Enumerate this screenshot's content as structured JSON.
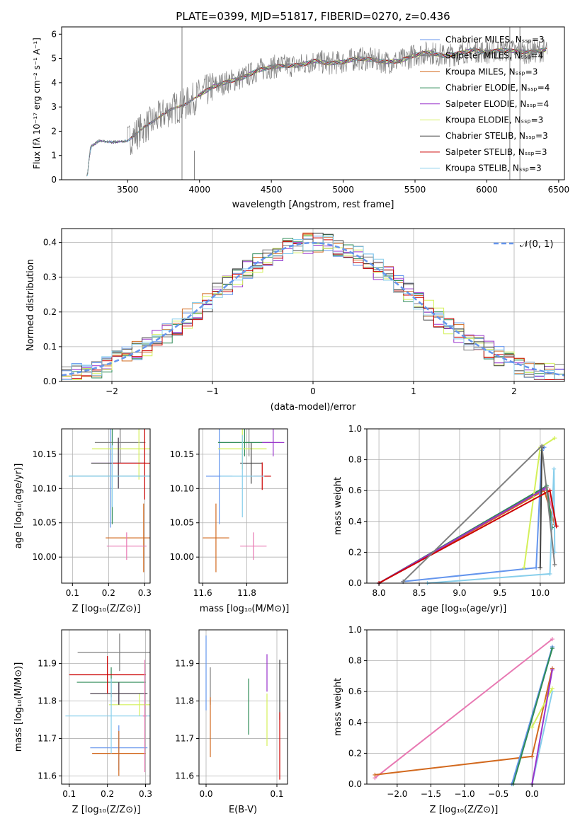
{
  "figure_title": "PLATE=0399, MJD=51817, FIBERID=0270, z=0.436",
  "colors": {
    "series": [
      "#6495ed",
      "#7f7f7f",
      "#d2691e",
      "#2e8b57",
      "#9932cc",
      "#d4f05a",
      "#404040",
      "#cc0000",
      "#87ceeb"
    ],
    "extra": [
      "#e879b3",
      "#d08850",
      "#b07fb0"
    ],
    "gauss": "#6495ed"
  },
  "chart_data": [
    {
      "id": "spectrum",
      "type": "line",
      "title": "PLATE=0399, MJD=51817, FIBERID=0270, z=0.436",
      "xlabel": "wavelength [Angstrom, rest frame]",
      "ylabel": "Flux [fλ 10⁻¹⁷ erg cm⁻² s⁻¹ A⁻¹]",
      "xlim": [
        3040,
        6540
      ],
      "ylim": [
        0,
        6.3
      ],
      "xticks": [
        "3500",
        "4000",
        "4500",
        "5000",
        "5500",
        "6000",
        "6500"
      ],
      "yticks": [
        "0",
        "1",
        "2",
        "3",
        "4",
        "5",
        "6"
      ],
      "legend_position": "upper-right",
      "legend": [
        "Chabrier MILES, Nₛₛₚ=3",
        "Salpeter MILES, Nₛₛₚ=4",
        "Kroupa MILES, Nₛₛₚ=3",
        "Chabrier ELODIE, Nₛₛₚ=4",
        "Salpeter ELODIE, Nₛₛₚ=4",
        "Kroupa ELODIE, Nₛₛₚ=3",
        "Chabrier STELIB, Nₛₛₚ=3",
        "Salpeter STELIB, Nₛₛₚ=3",
        "Kroupa STELIB, Nₛₛₚ=3"
      ],
      "continuum": {
        "x": [
          3220,
          3240,
          3300,
          3400,
          3500,
          3600,
          3700,
          3800,
          3900,
          4000,
          4100,
          4200,
          4300,
          4400,
          4500,
          4600,
          4700,
          4800,
          4900,
          5000,
          5100,
          5200,
          5300,
          5400,
          5500,
          5600,
          5700,
          5800,
          5900,
          6000,
          6100,
          6200,
          6300,
          6400
        ],
        "y": [
          0.2,
          1.35,
          1.6,
          1.55,
          1.6,
          2.1,
          2.5,
          2.9,
          3.1,
          3.5,
          3.85,
          4.05,
          4.2,
          4.5,
          4.65,
          4.7,
          4.72,
          4.9,
          4.8,
          4.85,
          5.0,
          4.95,
          4.85,
          4.9,
          5.15,
          5.25,
          5.1,
          5.2,
          5.35,
          5.25,
          5.35,
          5.3,
          5.25,
          5.35
        ]
      }
    },
    {
      "id": "residuals",
      "type": "histogram",
      "xlabel": "(data-model)/error",
      "ylabel": "Normed distribution",
      "xlim": [
        -2.5,
        2.5
      ],
      "ylim": [
        0,
        0.44
      ],
      "xticks": [
        "−2",
        "−1",
        "0",
        "1",
        "2"
      ],
      "yticks": [
        "0.0",
        "0.1",
        "0.2",
        "0.3",
        "0.4"
      ],
      "gaussian_label": "𝒩(0, 1)",
      "legend_position": "upper-right",
      "bin_width": 0.1
    },
    {
      "id": "age-vs-Z",
      "type": "errorbar",
      "xlabel": "Z [log₁₀(Z/Z⊙)]",
      "ylabel": "age  [log₁₀(age/yr)]",
      "xlim": [
        0.07,
        0.315
      ],
      "ylim": [
        9.962,
        10.187
      ],
      "xticks": [
        "0.1",
        "0.2",
        "0.3"
      ],
      "yticks": [
        "10.00",
        "10.05",
        "10.10",
        "10.15"
      ],
      "points": [
        {
          "x": 0.205,
          "y": 10.118,
          "xerr": 0.115,
          "yerr": 0.075
        },
        {
          "x": 0.232,
          "y": 10.167,
          "xerr": 0.07,
          "yerr": 0.03
        },
        {
          "x": 0.297,
          "y": 10.028,
          "xerr": 0.105,
          "yerr": 0.05
        },
        {
          "x": 0.21,
          "y": 10.118,
          "xerr": 0.12,
          "yerr": 0.07
        },
        {
          "x": 0.227,
          "y": 10.137,
          "xerr": 0.075,
          "yerr": 0.037
        },
        {
          "x": 0.284,
          "y": 10.158,
          "xerr": 0.13,
          "yerr": 0.045
        },
        {
          "x": 0.227,
          "y": 10.137,
          "xerr": 0.075,
          "yerr": 0.037
        },
        {
          "x": 0.3,
          "y": 10.137,
          "xerr": 0.09,
          "yerr": 0.053
        },
        {
          "x": 0.21,
          "y": 10.118,
          "xerr": 0.12,
          "yerr": 0.045
        },
        {
          "x": 0.25,
          "y": 10.016,
          "xerr": 0.055,
          "yerr": 0.02
        }
      ]
    },
    {
      "id": "age-vs-mass",
      "type": "errorbar",
      "xlabel": "mass [log₁₀(M/M⊙)]",
      "ylabel": "",
      "xlim": [
        11.583,
        11.985
      ],
      "ylim": [
        9.962,
        10.187
      ],
      "xticks": [
        "11.6",
        "11.8"
      ],
      "yticks": [
        "10.00",
        "10.05",
        "10.10",
        "10.15"
      ],
      "points": [
        {
          "x": 11.675,
          "y": 10.118,
          "xerr": 0.06,
          "yerr": 0.07
        },
        {
          "x": 11.81,
          "y": 10.167,
          "xerr": 0.14,
          "yerr": 0.02
        },
        {
          "x": 11.66,
          "y": 10.028,
          "xerr": 0.06,
          "yerr": 0.05
        },
        {
          "x": 11.79,
          "y": 10.167,
          "xerr": 0.12,
          "yerr": 0.02
        },
        {
          "x": 11.92,
          "y": 10.167,
          "xerr": 0.05,
          "yerr": 0.02
        },
        {
          "x": 11.78,
          "y": 10.158,
          "xerr": 0.11,
          "yerr": 0.03
        },
        {
          "x": 11.82,
          "y": 10.137,
          "xerr": 0.05,
          "yerr": 0.03
        },
        {
          "x": 11.87,
          "y": 10.118,
          "xerr": 0.04,
          "yerr": 0.02
        },
        {
          "x": 11.78,
          "y": 10.118,
          "xerr": 0.1,
          "yerr": 0.06
        },
        {
          "x": 11.83,
          "y": 10.016,
          "xerr": 0.06,
          "yerr": 0.02
        }
      ]
    },
    {
      "id": "weight-vs-age",
      "type": "line",
      "xlabel": "age  [log₁₀(age/yr)]",
      "ylabel": "mass weight",
      "xlim": [
        7.85,
        10.3
      ],
      "ylim": [
        0,
        1
      ],
      "xticks": [
        "8.0",
        "8.5",
        "9.0",
        "9.5",
        "10.0"
      ],
      "yticks": [
        "0.0",
        "0.2",
        "0.4",
        "0.6",
        "0.8",
        "1.0"
      ],
      "series": [
        {
          "x": [
            8.0,
            10.08,
            10.2
          ],
          "y": [
            0.0,
            0.62,
            0.37
          ]
        },
        {
          "x": [
            8.0,
            10.05,
            10.18
          ],
          "y": [
            0.0,
            0.6,
            0.38
          ]
        },
        {
          "x": [
            8.3,
            9.95,
            10.02,
            10.05
          ],
          "y": [
            0.01,
            0.1,
            0.86,
            0.88
          ]
        },
        {
          "x": [
            8.0,
            10.08,
            10.15
          ],
          "y": [
            0.0,
            0.63,
            0.36
          ]
        },
        {
          "x": [
            8.6,
            10.12,
            10.17,
            10.18
          ],
          "y": [
            0.0,
            0.06,
            0.74,
            0.2
          ]
        },
        {
          "x": [
            9.8,
            10.0,
            10.18
          ],
          "y": [
            0.1,
            0.88,
            0.94
          ]
        },
        {
          "x": [
            8.0,
            10.05
          ],
          "y": [
            0.0,
            0.61
          ]
        },
        {
          "x": [
            10.0,
            10.02
          ],
          "y": [
            0.1,
            0.88
          ]
        },
        {
          "x": [
            8.0,
            10.12,
            10.2
          ],
          "y": [
            0.0,
            0.6,
            0.37
          ]
        },
        {
          "x": [
            8.3,
            10.02,
            10.18
          ],
          "y": [
            0.01,
            0.89,
            0.12
          ]
        }
      ]
    },
    {
      "id": "mass-vs-Z",
      "type": "errorbar",
      "xlabel": "Z [log₁₀(Z/Z⊙)]",
      "ylabel": "mass [log₁₀(M/M⊙)]",
      "xlim": [
        0.08,
        0.312
      ],
      "ylim": [
        11.578,
        11.99
      ],
      "xticks": [
        "0.1",
        "0.2",
        "0.3"
      ],
      "yticks": [
        "11.6",
        "11.7",
        "11.8",
        "11.9"
      ],
      "points": [
        {
          "x": 0.23,
          "y": 11.675,
          "xerr": 0.075,
          "yerr": 0.06
        },
        {
          "x": 0.232,
          "y": 11.93,
          "xerr": 0.11,
          "yerr": 0.05
        },
        {
          "x": 0.23,
          "y": 11.66,
          "xerr": 0.07,
          "yerr": 0.06
        },
        {
          "x": 0.21,
          "y": 11.85,
          "xerr": 0.09,
          "yerr": 0.04
        },
        {
          "x": 0.23,
          "y": 11.82,
          "xerr": 0.075,
          "yerr": 0.03
        },
        {
          "x": 0.284,
          "y": 11.79,
          "xerr": 0.08,
          "yerr": 0.03
        },
        {
          "x": 0.23,
          "y": 11.82,
          "xerr": 0.075,
          "yerr": 0.03
        },
        {
          "x": 0.2,
          "y": 11.87,
          "xerr": 0.1,
          "yerr": 0.05
        },
        {
          "x": 0.21,
          "y": 11.76,
          "xerr": 0.12,
          "yerr": 0.1
        },
        {
          "x": 0.298,
          "y": 11.76,
          "xerr": 0.005,
          "yerr": 0.15
        }
      ]
    },
    {
      "id": "mass-vs-ebv",
      "type": "errorbar",
      "xlabel": "E(B-V)",
      "ylabel": "",
      "xlim": [
        -0.01,
        0.115
      ],
      "ylim": [
        11.578,
        11.99
      ],
      "xticks": [
        "0.0",
        "0.1"
      ],
      "yticks": [
        "11.6",
        "11.7",
        "11.8",
        "11.9"
      ],
      "points": [
        {
          "x": 0.0,
          "y": 11.875,
          "xerr": 0,
          "yerr": 0.1
        },
        {
          "x": 0.006,
          "y": 11.84,
          "xerr": 0,
          "yerr": 0.05
        },
        {
          "x": 0.006,
          "y": 11.73,
          "xerr": 0,
          "yerr": 0.08
        },
        {
          "x": 0.06,
          "y": 11.785,
          "xerr": 0,
          "yerr": 0.075
        },
        {
          "x": 0.086,
          "y": 11.875,
          "xerr": 0,
          "yerr": 0.05
        },
        {
          "x": 0.086,
          "y": 11.75,
          "xerr": 0,
          "yerr": 0.07
        },
        {
          "x": 0.104,
          "y": 11.83,
          "xerr": 0,
          "yerr": 0.08
        },
        {
          "x": 0.104,
          "y": 11.68,
          "xerr": 0,
          "yerr": 0.09
        }
      ]
    },
    {
      "id": "weight-vs-Z",
      "type": "line",
      "xlabel": "Z [log₁₀(Z/Z⊙)]",
      "ylabel": "mass weight",
      "xlim": [
        -2.45,
        0.48
      ],
      "ylim": [
        0,
        1
      ],
      "xticks": [
        "−2.0",
        "−1.5",
        "−1.0",
        "−0.5",
        "0.0"
      ],
      "yticks": [
        "0.0",
        "0.2",
        "0.4",
        "0.6",
        "0.8",
        "1.0"
      ],
      "series": [
        {
          "x": [
            -2.33,
            0.3
          ],
          "y": [
            0.04,
            0.94
          ]
        },
        {
          "x": [
            -2.33,
            0.0,
            0.3
          ],
          "y": [
            0.06,
            0.18,
            0.75
          ]
        },
        {
          "x": [
            -0.3,
            0.3
          ],
          "y": [
            0.0,
            0.89
          ]
        },
        {
          "x": [
            -0.28,
            0.3
          ],
          "y": [
            0.0,
            0.88
          ]
        },
        {
          "x": [
            0.0,
            0.3
          ],
          "y": [
            0.0,
            0.6
          ]
        },
        {
          "x": [
            0.0,
            0.3
          ],
          "y": [
            0.37,
            0.62
          ]
        },
        {
          "x": [
            0.0,
            0.3
          ],
          "y": [
            0.0,
            0.74
          ]
        }
      ]
    }
  ]
}
